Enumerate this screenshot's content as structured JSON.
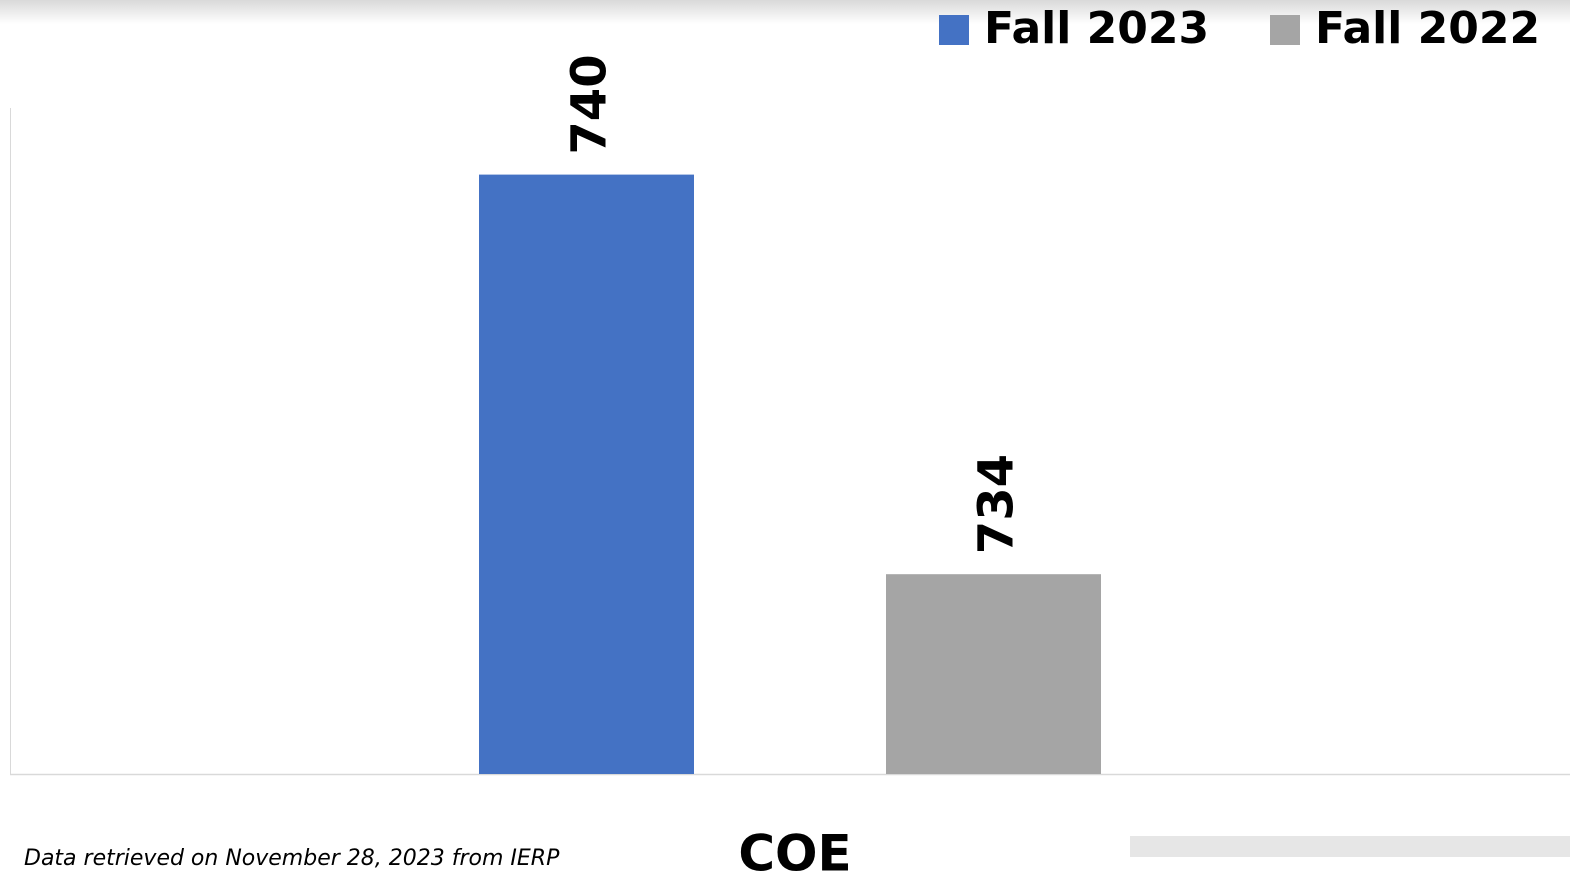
{
  "chart_data": {
    "type": "bar",
    "categories": [
      "COE"
    ],
    "series": [
      {
        "name": "Fall 2023",
        "color": "#4472c4",
        "values": [
          740
        ]
      },
      {
        "name": "Fall 2022",
        "color": "#a5a5a5",
        "values": [
          734
        ]
      }
    ],
    "ylim": [
      731,
      741
    ],
    "legend": "top-right",
    "footnote": "Data retrieved on November 28, 2023 from IERP"
  }
}
